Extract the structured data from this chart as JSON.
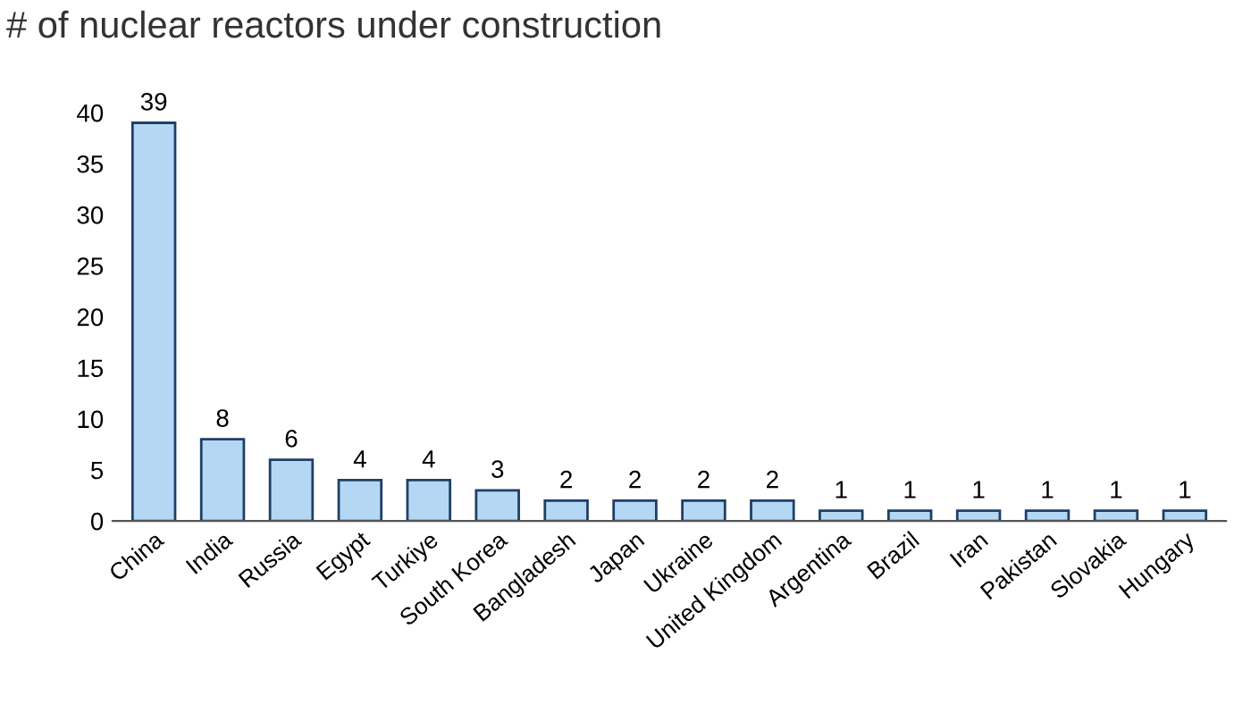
{
  "chart_data": {
    "type": "bar",
    "title": "# of nuclear reactors under construction",
    "categories": [
      "China",
      "India",
      "Russia",
      "Egypt",
      "Turkiye",
      "South Korea",
      "Bangladesh",
      "Japan",
      "Ukraine",
      "United Kingdom",
      "Argentina",
      "Brazil",
      "Iran",
      "Pakistan",
      "Slovakia",
      "Hungary"
    ],
    "values": [
      39,
      8,
      6,
      4,
      4,
      3,
      2,
      2,
      2,
      2,
      1,
      1,
      1,
      1,
      1,
      1
    ],
    "color": "#b4d7f3",
    "ylim": [
      0,
      40
    ],
    "yticks": [
      0,
      5,
      10,
      15,
      20,
      25,
      30,
      35,
      40
    ],
    "grid": false,
    "data_labels": true
  }
}
